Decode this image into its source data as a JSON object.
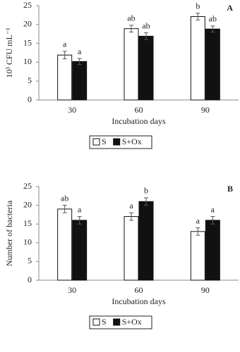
{
  "chart_data": [
    {
      "type": "bar",
      "panel": "A",
      "y_label": "10³ CFU mL⁻¹",
      "x_label": "Incubation days",
      "categories": [
        "30",
        "60",
        "90"
      ],
      "ylim": [
        0,
        25
      ],
      "yticks": [
        0,
        5,
        10,
        15,
        20,
        25
      ],
      "series": [
        {
          "name": "S",
          "color": "#ffffff",
          "values": [
            11.9,
            18.9,
            22.1
          ],
          "errors": [
            1.0,
            0.9,
            0.9
          ],
          "significance": [
            "a",
            "ab",
            "b"
          ]
        },
        {
          "name": "S+Ox",
          "color": "#111111",
          "values": [
            10.2,
            16.9,
            18.8
          ],
          "errors": [
            0.8,
            0.9,
            0.8
          ],
          "significance": [
            "a",
            "ab",
            "ab"
          ]
        }
      ]
    },
    {
      "type": "bar",
      "panel": "B",
      "y_label": "Number of bacteria",
      "x_label": "Incubation days",
      "categories": [
        "30",
        "60",
        "90"
      ],
      "ylim": [
        0,
        25
      ],
      "yticks": [
        0,
        5,
        10,
        15,
        20,
        25
      ],
      "series": [
        {
          "name": "S",
          "color": "#ffffff",
          "values": [
            19,
            17,
            13
          ],
          "errors": [
            1.0,
            1.0,
            1.0
          ],
          "significance": [
            "ab",
            "a",
            "a"
          ]
        },
        {
          "name": "S+Ox",
          "color": "#111111",
          "values": [
            16,
            21,
            16
          ],
          "errors": [
            1.0,
            1.0,
            1.0
          ],
          "significance": [
            "a",
            "b",
            "a"
          ]
        }
      ]
    }
  ]
}
